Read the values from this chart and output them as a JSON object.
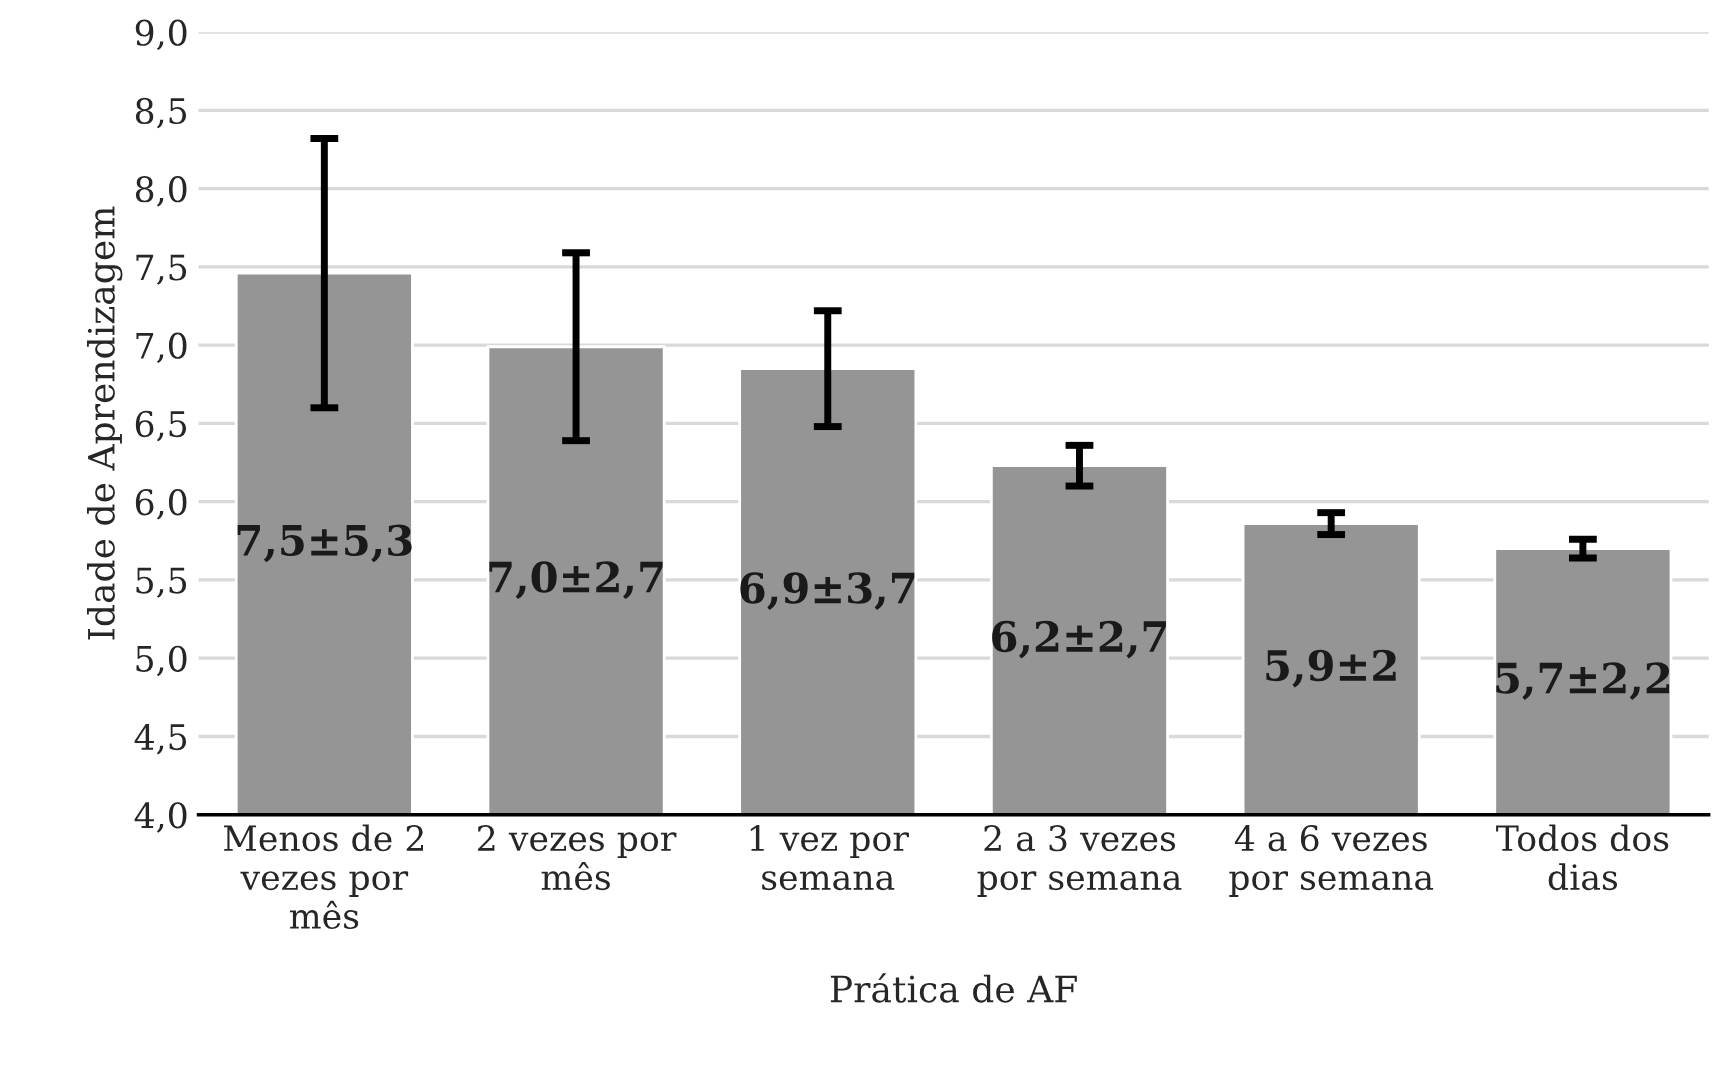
{
  "chart_data": {
    "type": "bar",
    "xlabel": "Prática de AF",
    "ylabel": "Idade de Aprendizagem",
    "categories": [
      "Menos de 2 vezes por mês",
      "2 vezes por mês",
      "1 vez por semana",
      "2 a 3 vezes por semana",
      "4 a 6 vezes por semana",
      "Todos dos dias"
    ],
    "values": [
      7.46,
      6.99,
      6.85,
      6.23,
      5.86,
      5.7
    ],
    "errors": [
      0.86,
      0.6,
      0.37,
      0.13,
      0.07,
      0.06
    ],
    "value_labels": [
      "7,5±5,3",
      "7,0±2,7",
      "6,9±3,7",
      "6,2±2,7",
      "5,9±2",
      "5,7±2,2"
    ],
    "color": "#959595",
    "ylim": [
      4.0,
      9.0
    ],
    "yticks": [
      {
        "value": 4.0,
        "label": "4,0"
      },
      {
        "value": 4.5,
        "label": "4,5"
      },
      {
        "value": 5.0,
        "label": "5,0"
      },
      {
        "value": 5.5,
        "label": "5,5"
      },
      {
        "value": 6.0,
        "label": "6,0"
      },
      {
        "value": 6.5,
        "label": "6,5"
      },
      {
        "value": 7.0,
        "label": "7,0"
      },
      {
        "value": 7.5,
        "label": "7,5"
      },
      {
        "value": 8.0,
        "label": "8,0"
      },
      {
        "value": 8.5,
        "label": "8,5"
      },
      {
        "value": 9.0,
        "label": "9,0"
      }
    ],
    "grid": "y"
  }
}
